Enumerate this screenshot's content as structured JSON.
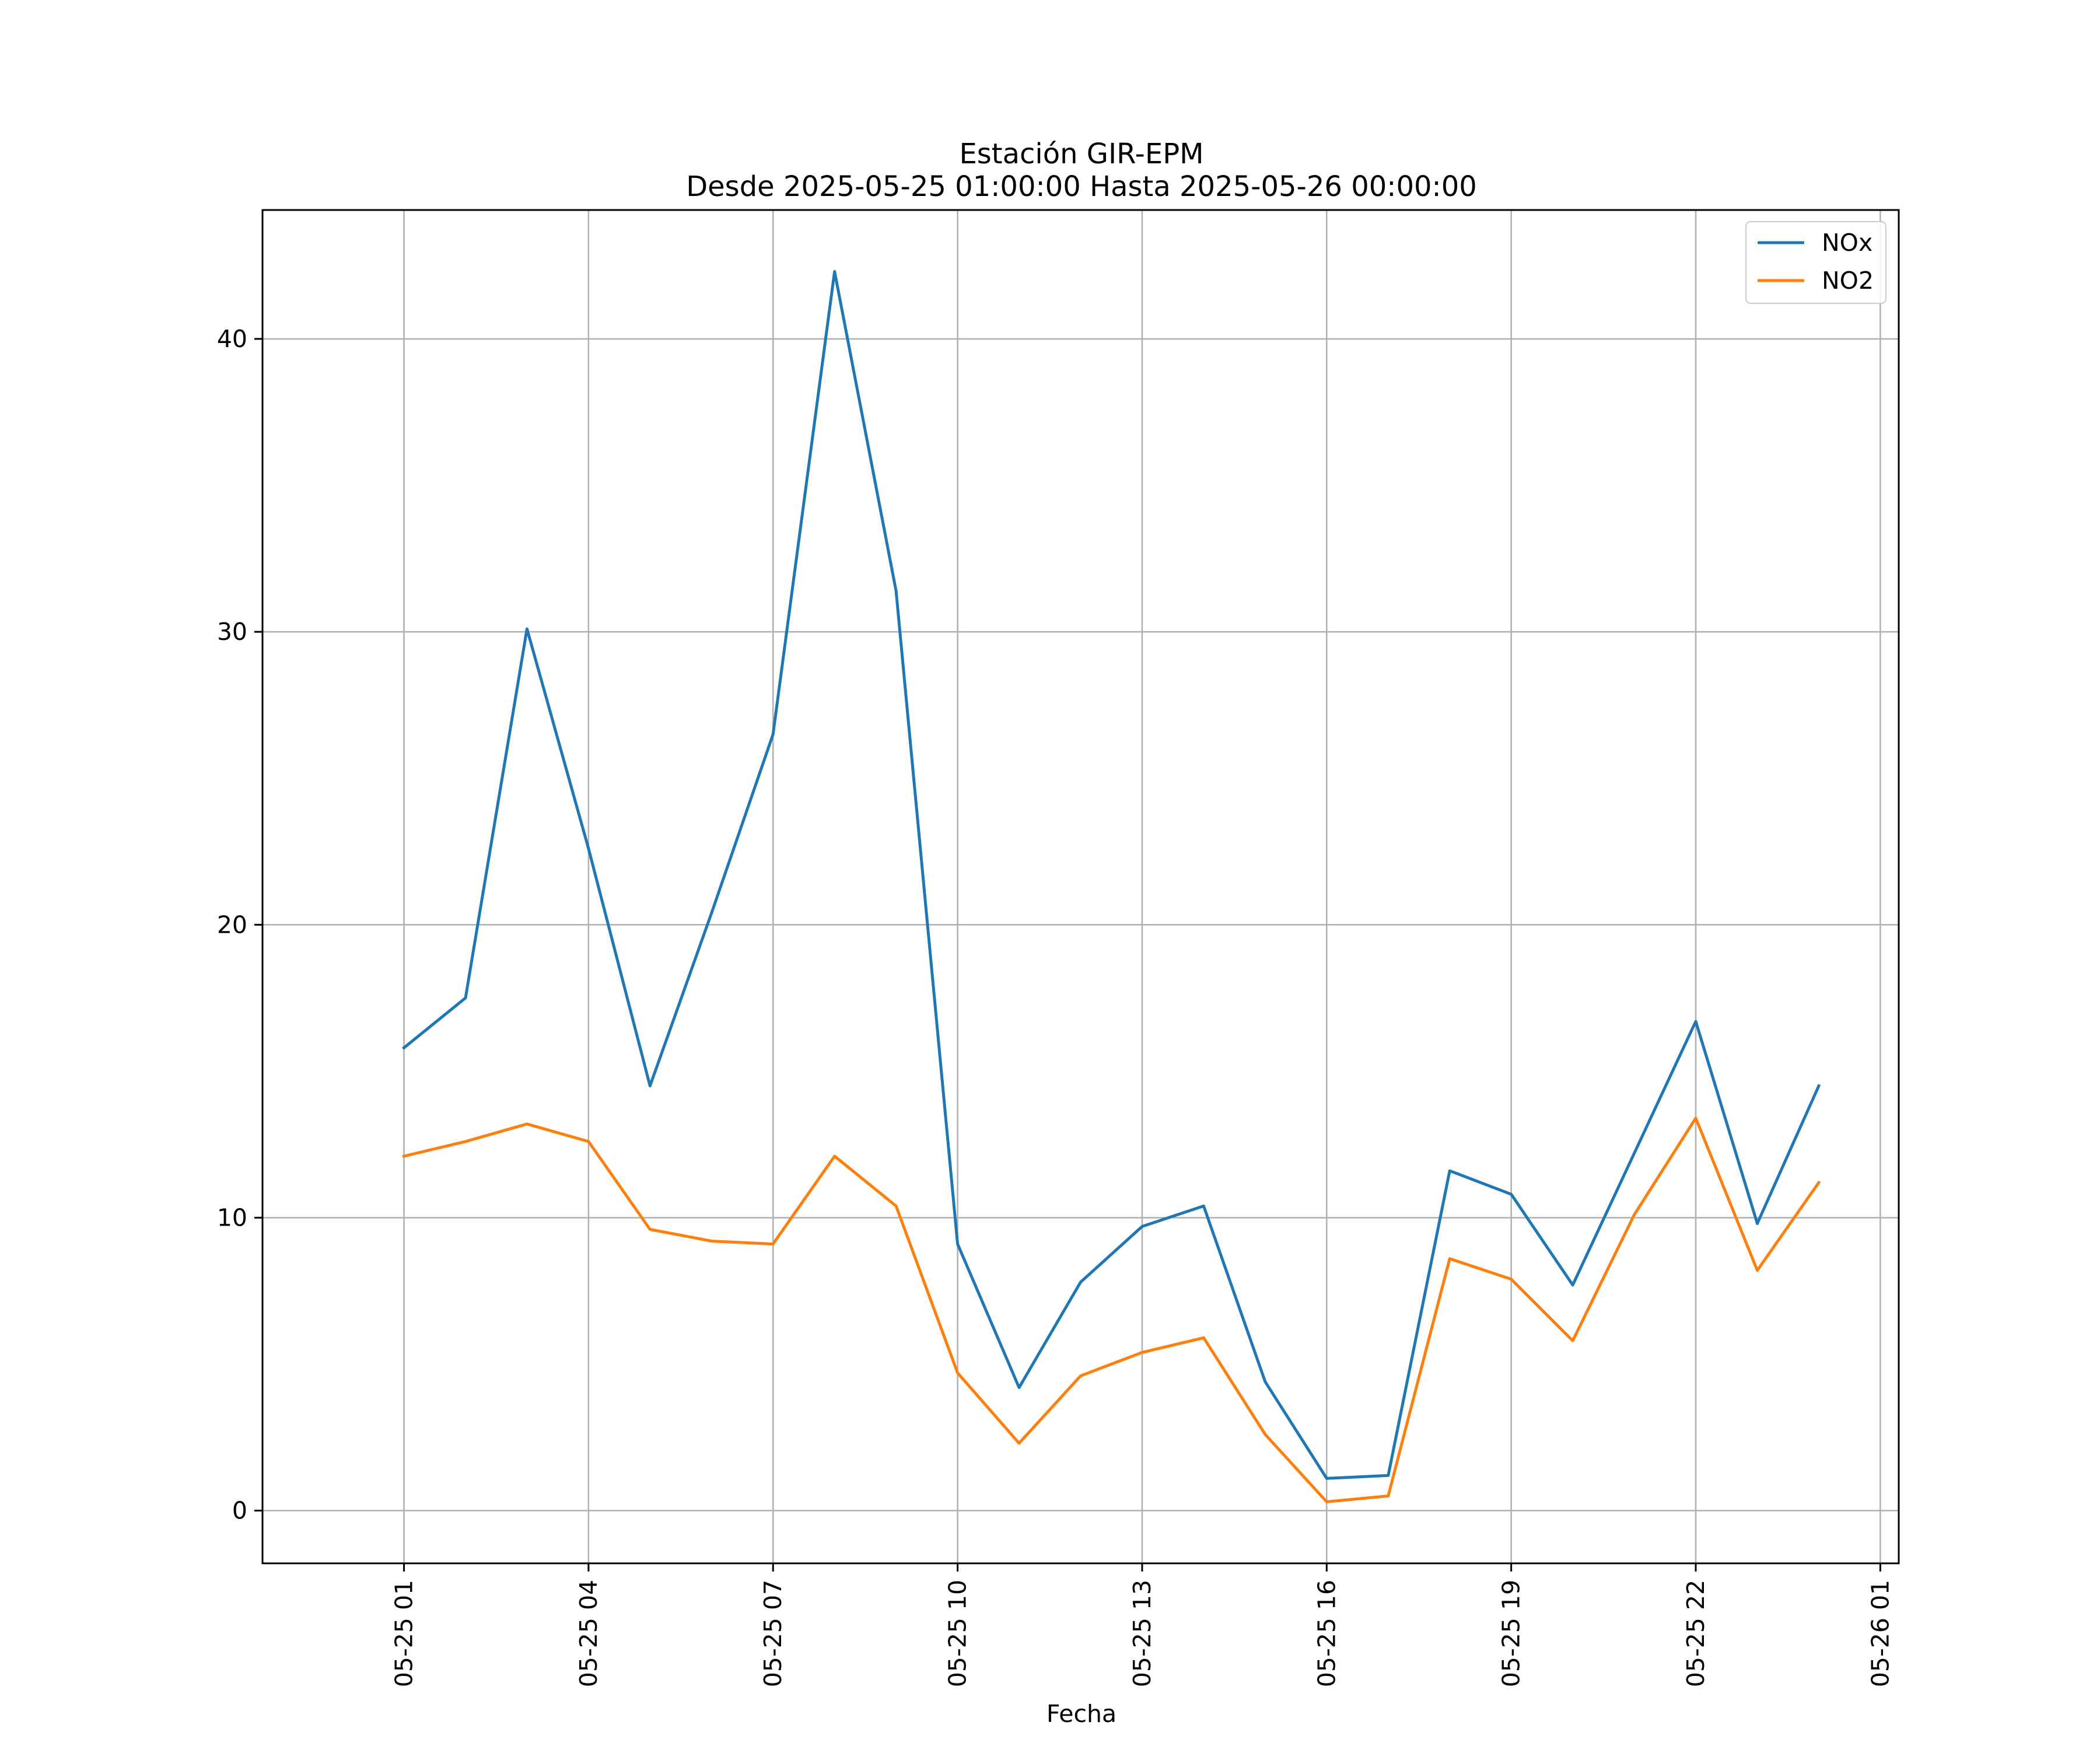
{
  "chart_data": {
    "type": "line",
    "title": "Estación GIR-EPM",
    "subtitle": "Desde 2025-05-25 01:00:00 Hasta 2025-05-26 00:00:00",
    "xlabel": "Fecha",
    "ylabel": "",
    "x": [
      "2025-05-25 01:00",
      "2025-05-25 02:00",
      "2025-05-25 03:00",
      "2025-05-25 04:00",
      "2025-05-25 05:00",
      "2025-05-25 06:00",
      "2025-05-25 07:00",
      "2025-05-25 08:00",
      "2025-05-25 09:00",
      "2025-05-25 10:00",
      "2025-05-25 11:00",
      "2025-05-25 12:00",
      "2025-05-25 13:00",
      "2025-05-25 14:00",
      "2025-05-25 15:00",
      "2025-05-25 16:00",
      "2025-05-25 17:00",
      "2025-05-25 18:00",
      "2025-05-25 19:00",
      "2025-05-25 20:00",
      "2025-05-25 21:00",
      "2025-05-25 22:00",
      "2025-05-25 23:00",
      "2025-05-26 00:00"
    ],
    "series": [
      {
        "name": "NOx",
        "color": "#1f77b4",
        "values": [
          15.8,
          17.5,
          30.1,
          22.6,
          14.5,
          20.4,
          26.5,
          42.3,
          31.4,
          9.1,
          4.2,
          7.8,
          9.7,
          10.4,
          4.4,
          1.1,
          1.2,
          11.6,
          10.8,
          7.7,
          12.2,
          16.7,
          9.8,
          14.5
        ]
      },
      {
        "name": "NO2",
        "color": "#ff7f0e",
        "values": [
          12.1,
          12.6,
          13.2,
          12.6,
          9.6,
          9.2,
          9.1,
          12.1,
          10.4,
          4.7,
          2.3,
          4.6,
          5.4,
          5.9,
          2.6,
          0.3,
          0.5,
          8.6,
          7.9,
          5.8,
          10.1,
          13.4,
          8.2,
          11.2
        ]
      }
    ],
    "xticks": [
      "05-25 01",
      "05-25 04",
      "05-25 07",
      "05-25 10",
      "05-25 13",
      "05-25 16",
      "05-25 19",
      "05-25 22",
      "05-26 01"
    ],
    "xlim": [
      "2025-05-24 22:42",
      "2025-05-26 01:18"
    ],
    "yticks": [
      "0",
      "10",
      "20",
      "30",
      "40"
    ],
    "ylim": [
      -1.8,
      44.4
    ],
    "grid": true,
    "legend_position": "top-right"
  }
}
